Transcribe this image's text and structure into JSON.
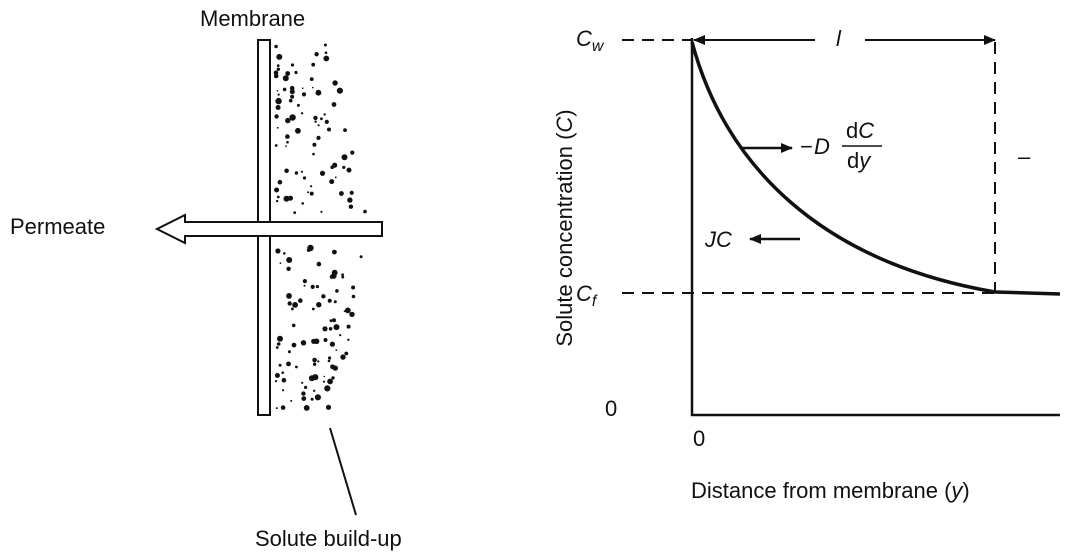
{
  "left_panel": {
    "membrane_label": "Membrane",
    "permeate_label": "Permeate",
    "buildup_label": "Solute build-up"
  },
  "right_panel": {
    "cw": {
      "main": "C",
      "sub": "w"
    },
    "cf": {
      "main": "C",
      "sub": "f"
    },
    "length_label": "l",
    "side_mark": "–",
    "y_origin": "0",
    "x_origin": "0",
    "flux": {
      "sign": "−",
      "coef": "D",
      "num": [
        "d",
        "C"
      ],
      "den": [
        "d",
        "y"
      ]
    },
    "convective": "JC",
    "y_axis_label": {
      "prefix": "Solute concentration (",
      "var": "C",
      "suffix": ")"
    },
    "x_axis_label": {
      "prefix": "Distance from membrane (",
      "var": "y",
      "suffix": ")"
    }
  }
}
